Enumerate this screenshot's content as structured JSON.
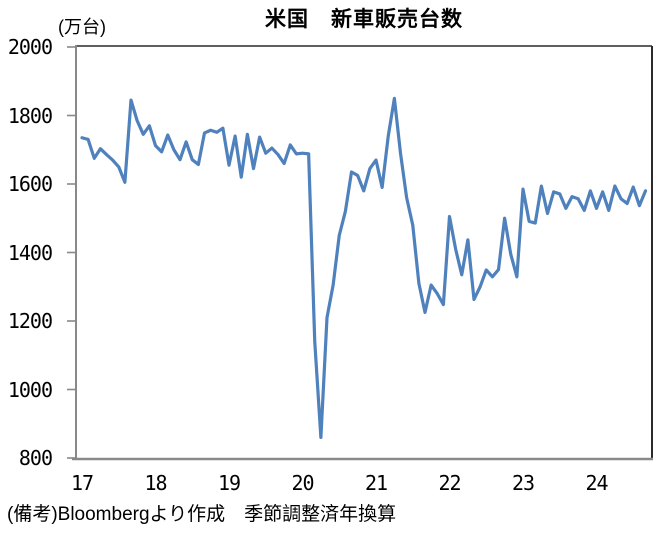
{
  "chart_data": {
    "type": "line",
    "title": "米国　新車販売台数",
    "unit_label": "(万台)",
    "note": "(備考)Bloombergより作成　季節調整済年換算",
    "ylim": [
      800,
      2000
    ],
    "ytick_step": 200,
    "y_tick_labels": [
      "2000",
      "1800",
      "1600",
      "1400",
      "1200",
      "1000",
      "800"
    ],
    "x_tick_labels": [
      "17",
      "18",
      "19",
      "20",
      "21",
      "22",
      "23",
      "24"
    ],
    "x_start_year": 2017,
    "frequency": "monthly",
    "grid": "off",
    "legend": "none",
    "line_color": "#4F81BD",
    "axis_color": "#898989",
    "border_color": "#2a2a2a",
    "series": [
      {
        "name": "米国新車販売台数（季節調整済年換算）",
        "values": [
          1735,
          1730,
          1675,
          1703,
          1686,
          1670,
          1650,
          1605,
          1845,
          1785,
          1745,
          1770,
          1712,
          1694,
          1743,
          1700,
          1671,
          1723,
          1671,
          1657,
          1749,
          1757,
          1751,
          1763,
          1655,
          1740,
          1620,
          1745,
          1645,
          1737,
          1690,
          1705,
          1686,
          1660,
          1714,
          1688,
          1690,
          1688,
          1140,
          860,
          1210,
          1305,
          1450,
          1520,
          1635,
          1625,
          1580,
          1645,
          1670,
          1590,
          1740,
          1850,
          1690,
          1560,
          1480,
          1310,
          1225,
          1305,
          1280,
          1248,
          1505,
          1410,
          1335,
          1437,
          1263,
          1300,
          1349,
          1329,
          1350,
          1500,
          1395,
          1329,
          1585,
          1491,
          1486,
          1594,
          1514,
          1577,
          1571,
          1529,
          1563,
          1557,
          1523,
          1580,
          1529,
          1577,
          1523,
          1594,
          1557,
          1543,
          1591,
          1537,
          1580
        ]
      }
    ]
  }
}
